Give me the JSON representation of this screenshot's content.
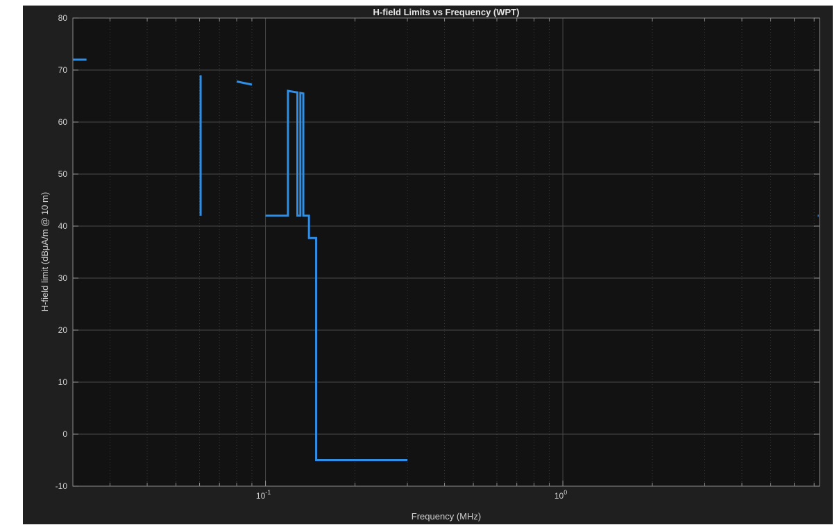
{
  "chart_data": {
    "type": "line",
    "title": "H-field Limits vs Frequency (WPT)",
    "xlabel": "Frequency (MHz)",
    "ylabel": "H-field limit (dBμA/m @ 10 m)",
    "xscale": "log",
    "xlim": [
      0.0225,
      7.3
    ],
    "ylim": [
      -10,
      80
    ],
    "yticks": [
      -10,
      0,
      10,
      20,
      30,
      40,
      50,
      60,
      70,
      80
    ],
    "xticks": [
      {
        "value": 0.1,
        "base": "10",
        "exp": "-1"
      },
      {
        "value": 1,
        "base": "10",
        "exp": "0"
      }
    ],
    "grid": true,
    "minor_grid": true,
    "line_color": "#2f8ee5",
    "background_color": "#121212",
    "segments": [
      {
        "x": [
          0.0225,
          0.025
        ],
        "y": [
          72,
          72
        ]
      },
      {
        "x": [
          0.0605,
          0.0605,
          0.0605
        ],
        "y": [
          69,
          42,
          69
        ]
      },
      {
        "x": [
          0.08,
          0.09
        ],
        "y": [
          67.8,
          67.2
        ]
      },
      {
        "x": [
          0.1,
          0.119,
          0.119,
          0.128,
          0.128,
          0.131,
          0.131,
          0.134,
          0.134,
          0.136,
          0.136,
          0.14,
          0.14,
          0.148,
          0.148,
          0.15,
          0.15,
          0.3
        ],
        "y": [
          42,
          42,
          66,
          65.7,
          42,
          42,
          65.6,
          65.5,
          42,
          42,
          42,
          42,
          37.7,
          37.7,
          -5,
          -5,
          -5,
          -5
        ]
      },
      {
        "x": [
          7.2,
          7.25
        ],
        "y": [
          42,
          42
        ]
      }
    ]
  }
}
